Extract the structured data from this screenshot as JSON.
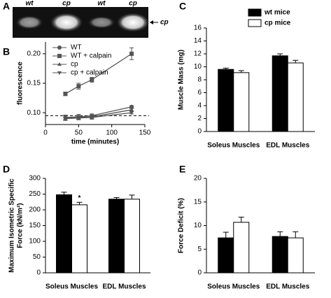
{
  "gel": {
    "panel": "A",
    "lanes": [
      "wt",
      "cp",
      "wt",
      "cp"
    ],
    "band_label": "cp"
  },
  "chart_data": [
    {
      "type": "line",
      "panel": "B",
      "x_label": "time (minutes)",
      "y_label": [
        "fluorescence"
      ],
      "x": [
        30,
        50,
        70,
        130
      ],
      "series": [
        {
          "name": "WT",
          "marker": "circle",
          "color": "#555555",
          "values": [
            0.092,
            0.093,
            0.095,
            0.11
          ],
          "errors": [
            0.004,
            0.004,
            0.003,
            0.002
          ]
        },
        {
          "name": "WT + calpain",
          "marker": "square",
          "color": "#555555",
          "values": [
            0.132,
            0.145,
            0.156,
            0.2
          ],
          "errors": [
            0.003,
            0.005,
            0.004,
            0.01
          ]
        },
        {
          "name": "cp",
          "marker": "triangle",
          "color": "#555555",
          "values": [
            0.091,
            0.092,
            0.093,
            0.105
          ],
          "errors": [
            0.004,
            0.003,
            0.003,
            0.002
          ]
        },
        {
          "name": "cp + calpain",
          "marker": "triangle-down",
          "color": "#555555",
          "values": [
            0.09,
            0.091,
            0.092,
            0.1
          ],
          "errors": [
            0.003,
            0.003,
            0.003,
            0.002
          ]
        }
      ],
      "xlim": [
        0,
        150
      ],
      "xticks": [
        0,
        50,
        100,
        150
      ],
      "ylim": [
        0.08,
        0.22
      ],
      "yticks": [
        {
          "value": 0.1,
          "label": "0.10"
        },
        {
          "value": 0.15,
          "label": "0.15"
        },
        {
          "value": 0.2,
          "label": "0.20"
        }
      ],
      "reference_line": 0.095,
      "legend": "upper-left"
    },
    {
      "type": "bar",
      "panel": "C",
      "y_label": [
        "Muscle Mass (mg)"
      ],
      "categories": [
        "Soleus Muscles",
        "EDL Muscles"
      ],
      "series": [
        {
          "name": "wt mice",
          "color": "#000000",
          "values": [
            9.6,
            11.7
          ],
          "errors": [
            0.2,
            0.3
          ]
        },
        {
          "name": "cp mice",
          "color": "#ffffff",
          "values": [
            9.1,
            10.6
          ],
          "errors": [
            0.3,
            0.4
          ]
        }
      ],
      "ylim": [
        0,
        16
      ],
      "yticks": [
        0,
        2,
        4,
        6,
        8,
        10,
        12,
        14,
        16
      ],
      "legend": "upper-right"
    },
    {
      "type": "bar",
      "panel": "D",
      "y_label": [
        "Maximum Isometric Specific",
        "Force (kN/m²)"
      ],
      "categories": [
        "Soleus Muscles",
        "EDL Muscles"
      ],
      "series": [
        {
          "name": "wt mice",
          "color": "#000000",
          "values": [
            248,
            234
          ],
          "errors": [
            8,
            5
          ]
        },
        {
          "name": "cp mice",
          "color": "#ffffff",
          "values": [
            216,
            234
          ],
          "errors": [
            8,
            13
          ]
        }
      ],
      "ylim": [
        0,
        300
      ],
      "yticks": [
        0,
        50,
        100,
        150,
        200,
        250,
        300
      ],
      "annotation": "*"
    },
    {
      "type": "bar",
      "panel": "E",
      "y_label": [
        "Force Deficit (%)"
      ],
      "categories": [
        "Soleus Muscles",
        "EDL Muscles"
      ],
      "series": [
        {
          "name": "wt mice",
          "color": "#000000",
          "values": [
            7.4,
            7.7
          ],
          "errors": [
            1.2,
            1.0
          ]
        },
        {
          "name": "cp mice",
          "color": "#ffffff",
          "values": [
            10.7,
            7.4
          ],
          "errors": [
            1.1,
            1.3
          ]
        }
      ],
      "ylim": [
        0,
        20
      ],
      "yticks": [
        0,
        5,
        10,
        15,
        20
      ]
    }
  ]
}
